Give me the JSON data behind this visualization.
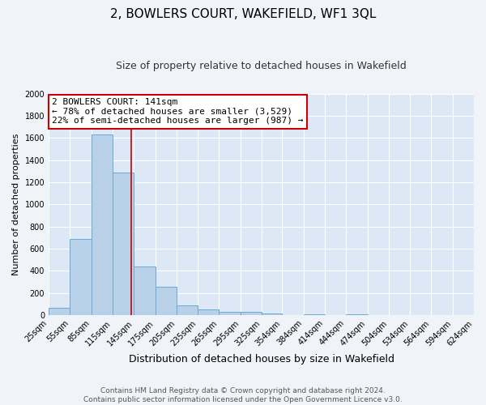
{
  "title": "2, BOWLERS COURT, WAKEFIELD, WF1 3QL",
  "subtitle": "Size of property relative to detached houses in Wakefield",
  "xlabel": "Distribution of detached houses by size in Wakefield",
  "ylabel": "Number of detached properties",
  "bar_color": "#b8d0e8",
  "bar_edge_color": "#6aaad4",
  "background_color": "#dce8f5",
  "grid_color": "#ffffff",
  "fig_background": "#f0f4f8",
  "vline_x": 141,
  "vline_color": "#cc0000",
  "annotation_line1": "2 BOWLERS COURT: 141sqm",
  "annotation_line2": "← 78% of detached houses are smaller (3,529)",
  "annotation_line3": "22% of semi-detached houses are larger (987) →",
  "annotation_box_color": "#ffffff",
  "annotation_box_edge_color": "#cc0000",
  "bins": [
    25,
    55,
    85,
    115,
    145,
    175,
    205,
    235,
    265,
    295,
    325,
    354,
    384,
    414,
    444,
    474,
    504,
    534,
    564,
    594,
    624
  ],
  "bin_labels": [
    "25sqm",
    "55sqm",
    "85sqm",
    "115sqm",
    "145sqm",
    "175sqm",
    "205sqm",
    "235sqm",
    "265sqm",
    "295sqm",
    "325sqm",
    "354sqm",
    "384sqm",
    "414sqm",
    "444sqm",
    "474sqm",
    "504sqm",
    "534sqm",
    "564sqm",
    "594sqm",
    "624sqm"
  ],
  "counts": [
    65,
    690,
    1630,
    1285,
    435,
    255,
    90,
    50,
    30,
    25,
    15,
    0,
    10,
    0,
    5,
    0,
    0,
    0,
    0,
    0
  ],
  "ylim": [
    0,
    2000
  ],
  "yticks": [
    0,
    200,
    400,
    600,
    800,
    1000,
    1200,
    1400,
    1600,
    1800,
    2000
  ],
  "footer_line1": "Contains HM Land Registry data © Crown copyright and database right 2024.",
  "footer_line2": "Contains public sector information licensed under the Open Government Licence v3.0.",
  "title_fontsize": 11,
  "subtitle_fontsize": 9,
  "xlabel_fontsize": 9,
  "ylabel_fontsize": 8,
  "tick_fontsize": 7,
  "annotation_fontsize": 8,
  "footer_fontsize": 6.5
}
